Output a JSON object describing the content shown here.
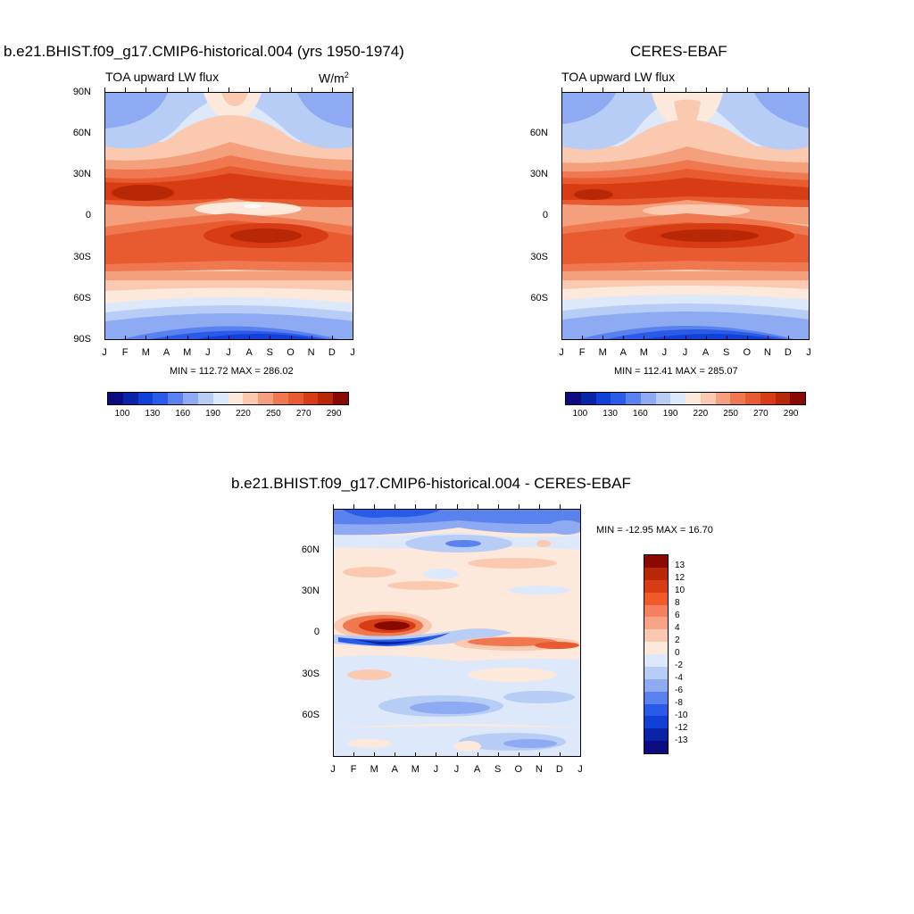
{
  "chart_data": [
    {
      "type": "heatmap",
      "title": "b.e21.BHIST.f09_g17.CMIP6-historical.004 (yrs 1950-1974)",
      "subtitle_left": "TOA upward LW flux",
      "units": "W/m",
      "units_sup": "2",
      "x_tick_labels": [
        "J",
        "F",
        "M",
        "A",
        "M",
        "J",
        "J",
        "A",
        "S",
        "O",
        "N",
        "D",
        "J"
      ],
      "y_tick_labels": [
        "90N",
        "60N",
        "30N",
        "0",
        "30S",
        "60S",
        "90S"
      ],
      "ylim": [
        -90,
        90
      ],
      "minmax_text": "MIN = 112.72 MAX = 286.02",
      "colorbar_labels": [
        "100",
        "130",
        "160",
        "190",
        "220",
        "250",
        "270",
        "290"
      ]
    },
    {
      "type": "heatmap",
      "title": "CERES-EBAF",
      "subtitle_left": "TOA upward LW flux",
      "x_tick_labels": [
        "J",
        "F",
        "M",
        "A",
        "M",
        "J",
        "J",
        "A",
        "S",
        "O",
        "N",
        "D",
        "J"
      ],
      "y_tick_labels": [
        "60N",
        "30N",
        "0",
        "30S",
        "60S"
      ],
      "ylim": [
        -90,
        90
      ],
      "minmax_text": "MIN = 112.41 MAX = 285.07",
      "colorbar_labels": [
        "100",
        "130",
        "160",
        "190",
        "220",
        "250",
        "270",
        "290"
      ]
    },
    {
      "type": "heatmap",
      "title": "b.e21.BHIST.f09_g17.CMIP6-historical.004 - CERES-EBAF",
      "x_tick_labels": [
        "J",
        "F",
        "M",
        "A",
        "M",
        "J",
        "J",
        "A",
        "S",
        "O",
        "N",
        "D",
        "J"
      ],
      "y_tick_labels": [
        "60N",
        "30N",
        "0",
        "30S",
        "60S"
      ],
      "ylim": [
        -90,
        90
      ],
      "minmax_text": "MIN = -12.95 MAX =  16.70",
      "colorbar_labels": [
        "13",
        "12",
        "10",
        "8",
        "6",
        "4",
        "2",
        "0",
        "-2",
        "-4",
        "-6",
        "-8",
        "-10",
        "-12",
        "-13"
      ]
    }
  ],
  "colors": {
    "flux_scale": [
      "#0c0c80",
      "#0a24a8",
      "#1040d8",
      "#2a5ae8",
      "#5a82ee",
      "#8eaaf2",
      "#b8cdf6",
      "#dde8fb",
      "#fde8dc",
      "#fbc9b0",
      "#f5a07c",
      "#f07850",
      "#e85a30",
      "#d83c14",
      "#b82806",
      "#8a0a00"
    ],
    "diff_scale": [
      "#8a0a00",
      "#b82806",
      "#d83c14",
      "#f05a28",
      "#f58060",
      "#f7a486",
      "#fac8b0",
      "#fde8dc",
      "#dde8fb",
      "#b8cdf6",
      "#8eaaf2",
      "#5a82ee",
      "#2a5ae8",
      "#1040d8",
      "#0a24a8",
      "#0c0c80"
    ]
  }
}
